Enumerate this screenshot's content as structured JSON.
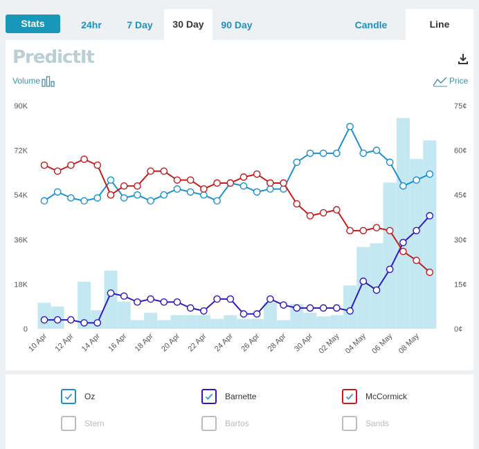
{
  "tabs": {
    "stats": "Stats",
    "h24": "24hr",
    "d7": "7 Day",
    "d30": "30 Day",
    "d90": "90 Day",
    "candle": "Candle",
    "line": "Line"
  },
  "header": {
    "logo": "PredictIt",
    "volume_label": "Volume",
    "price_label": "Price"
  },
  "colors": {
    "oz": "#1a8fd0",
    "barnette": "#2d18c0",
    "mccormick": "#c41a1a",
    "volume_bar": "#c3e8f1",
    "disabled": "#bbbbbb",
    "accent": "#1798b8"
  },
  "legend": [
    {
      "name": "Oz",
      "enabled": true
    },
    {
      "name": "Barnette",
      "enabled": true
    },
    {
      "name": "McCormick",
      "enabled": true
    },
    {
      "name": "Stern",
      "enabled": false
    },
    {
      "name": "Bartos",
      "enabled": false
    },
    {
      "name": "Sands",
      "enabled": false
    }
  ],
  "chart_data": {
    "type": "line",
    "grid": false,
    "x_tick_labels": [
      "10 Apr",
      "12 Apr",
      "14 Apr",
      "16 Apr",
      "18 Apr",
      "20 Apr",
      "22 Apr",
      "24 Apr",
      "26 Apr",
      "28 Apr",
      "30 Apr",
      "02 May",
      "04 May",
      "06 May",
      "08 May"
    ],
    "left_axis": {
      "label": "Volume",
      "ticks": [
        "0",
        "18K",
        "36K",
        "54K",
        "72K",
        "90K"
      ],
      "ylim": [
        0,
        90000
      ]
    },
    "right_axis": {
      "label": "Price",
      "ticks": [
        "0¢",
        "15¢",
        "30¢",
        "45¢",
        "60¢",
        "75¢"
      ],
      "ylim": [
        0,
        75
      ]
    },
    "x": [
      "Apr 10",
      "Apr 11",
      "Apr 12",
      "Apr 13",
      "Apr 14",
      "Apr 15",
      "Apr 16",
      "Apr 17",
      "Apr 18",
      "Apr 19",
      "Apr 20",
      "Apr 21",
      "Apr 22",
      "Apr 23",
      "Apr 24",
      "Apr 25",
      "Apr 26",
      "Apr 27",
      "Apr 28",
      "Apr 29",
      "Apr 30",
      "May 1",
      "May 2",
      "May 3",
      "May 4",
      "May 5",
      "May 6",
      "May 7",
      "May 8",
      "May 9"
    ],
    "volume": [
      10500,
      9000,
      0,
      19000,
      7500,
      23500,
      11000,
      3500,
      6500,
      3500,
      5500,
      5500,
      5500,
      4000,
      5500,
      4000,
      4000,
      10500,
      3500,
      10000,
      6500,
      5000,
      5500,
      17500,
      33000,
      34500,
      59000,
      85000,
      68500,
      76000
    ],
    "series": [
      {
        "name": "Oz",
        "values": [
          43,
          46,
          44,
          43,
          44,
          50,
          44,
          45,
          43,
          45,
          47,
          46,
          45,
          43,
          49,
          48,
          46,
          47,
          47,
          56,
          59,
          59,
          59,
          68,
          59,
          60,
          56,
          48,
          50,
          52
        ]
      },
      {
        "name": "Barnette",
        "values": [
          3,
          3,
          3,
          2,
          2,
          12,
          11,
          9,
          10,
          9,
          9,
          7,
          6,
          10,
          10,
          5,
          5,
          10,
          8,
          7,
          7,
          7,
          7,
          6,
          16,
          13,
          20,
          29,
          33,
          38
        ]
      },
      {
        "name": "McCormick",
        "values": [
          55,
          53,
          55,
          57,
          55,
          45,
          48,
          48,
          53,
          53,
          50,
          50,
          47,
          49,
          49,
          51,
          52,
          49,
          49,
          42,
          38,
          39,
          40,
          33,
          33,
          34,
          33,
          26,
          23,
          19
        ]
      }
    ]
  }
}
